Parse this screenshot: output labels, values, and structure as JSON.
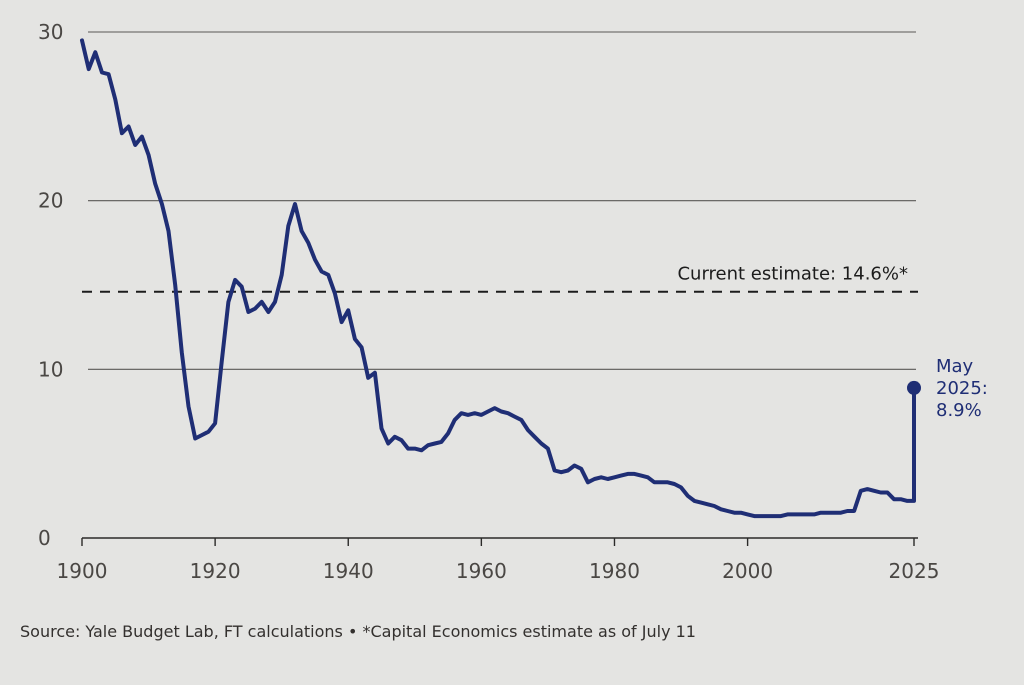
{
  "chart_data": {
    "type": "line",
    "y_ticks": [
      "0",
      "10",
      "20",
      "30"
    ],
    "x_ticks": [
      "1900",
      "1920",
      "1940",
      "1960",
      "1980",
      "2000",
      "2025"
    ],
    "x_tick_values": [
      1900,
      1920,
      1940,
      1960,
      1980,
      2000,
      2025
    ],
    "y_tick_values": [
      0,
      10,
      20,
      30
    ],
    "xlim": [
      1900,
      2025
    ],
    "ylim": [
      0,
      30
    ],
    "grid": true,
    "line_color": "#1f2e75",
    "series": [
      {
        "x": [
          1900,
          1901,
          1902,
          1903,
          1904,
          1905,
          1906,
          1907,
          1908,
          1909,
          1910,
          1911,
          1912,
          1913,
          1914,
          1915,
          1916,
          1917,
          1918,
          1919,
          1920,
          1921,
          1922,
          1923,
          1924,
          1925,
          1926,
          1927,
          1928,
          1929,
          1930,
          1931,
          1932,
          1933,
          1934,
          1935,
          1936,
          1937,
          1938,
          1939,
          1940,
          1941,
          1942,
          1943,
          1944,
          1945,
          1946,
          1947,
          1948,
          1949,
          1950,
          1951,
          1952,
          1953,
          1954,
          1955,
          1956,
          1957,
          1958,
          1959,
          1960,
          1961,
          1962,
          1963,
          1964,
          1965,
          1966,
          1967,
          1968,
          1969,
          1970,
          1971,
          1972,
          1973,
          1974,
          1975,
          1976,
          1977,
          1978,
          1979,
          1980,
          1981,
          1982,
          1983,
          1984,
          1985,
          1986,
          1987,
          1988,
          1989,
          1990,
          1991,
          1992,
          1993,
          1994,
          1995,
          1996,
          1997,
          1998,
          1999,
          2000,
          2001,
          2002,
          2003,
          2004,
          2005,
          2006,
          2007,
          2008,
          2009,
          2010,
          2011,
          2012,
          2013,
          2014,
          2015,
          2016,
          2017,
          2018,
          2019,
          2020,
          2021,
          2022,
          2023,
          2024,
          2025
        ],
        "y": [
          29.5,
          27.8,
          28.8,
          27.6,
          27.5,
          26.0,
          24.0,
          24.4,
          23.3,
          23.8,
          22.7,
          21.0,
          19.8,
          18.2,
          15.0,
          11.0,
          7.8,
          5.9,
          6.1,
          6.3,
          6.8,
          10.5,
          14.0,
          15.3,
          14.9,
          13.4,
          13.6,
          14.0,
          13.4,
          14.0,
          15.6,
          18.5,
          19.8,
          18.2,
          17.5,
          16.5,
          15.8,
          15.6,
          14.5,
          12.8,
          13.5,
          11.8,
          11.3,
          9.5,
          9.8,
          6.5,
          5.6,
          6.0,
          5.8,
          5.3,
          5.3,
          5.2,
          5.5,
          5.6,
          5.7,
          6.2,
          7.0,
          7.4,
          7.3,
          7.4,
          7.3,
          7.5,
          7.7,
          7.5,
          7.4,
          7.2,
          7.0,
          6.4,
          6.0,
          5.6,
          5.3,
          4.0,
          3.9,
          4.0,
          4.3,
          4.1,
          3.3,
          3.5,
          3.6,
          3.5,
          3.6,
          3.7,
          3.8,
          3.8,
          3.7,
          3.6,
          3.3,
          3.3,
          3.3,
          3.2,
          3.0,
          2.5,
          2.2,
          2.1,
          2.0,
          1.9,
          1.7,
          1.6,
          1.5,
          1.5,
          1.4,
          1.3,
          1.3,
          1.3,
          1.3,
          1.3,
          1.4,
          1.4,
          1.4,
          1.4,
          1.4,
          1.5,
          1.5,
          1.5,
          1.5,
          1.6,
          1.6,
          2.8,
          2.9,
          2.8,
          2.7,
          2.7,
          2.3,
          2.3,
          2.2,
          8.9
        ]
      }
    ],
    "reference_line": {
      "value": 14.6,
      "label": "Current estimate: 14.6%*",
      "style": "dashed"
    },
    "end_annotation": {
      "x": 2025,
      "value": 8.9,
      "label_lines": [
        "May",
        "2025:",
        "8.9%"
      ]
    },
    "source": "Source: Yale Budget Lab, FT calculations • *Capital Economics estimate as of July 11"
  }
}
